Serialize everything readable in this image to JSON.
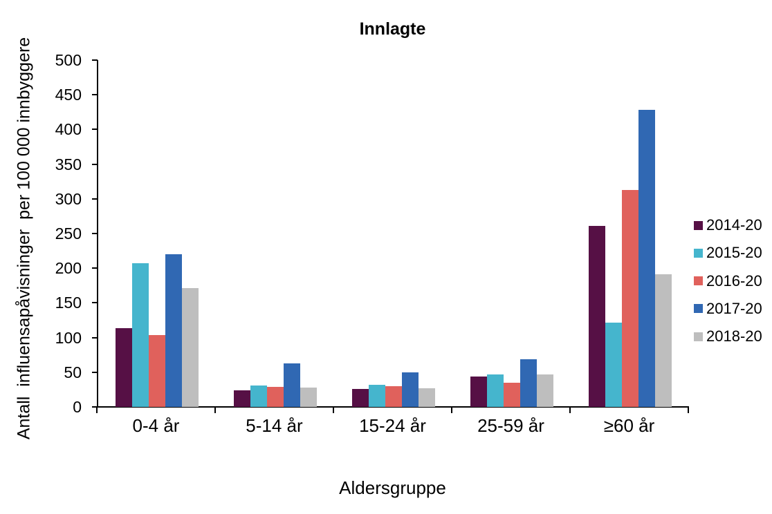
{
  "title": "Innlagte",
  "y_axis": {
    "label": "Antall  influensapåvisninger  per 100 000 innbyggere"
  },
  "x_axis": {
    "label": "Aldersgruppe"
  },
  "legend": {
    "position": "right",
    "note": "labels truncated at image edge",
    "items": [
      {
        "label": "2014-20",
        "color": "#561045"
      },
      {
        "label": "2015-20",
        "color": "#45B5CD"
      },
      {
        "label": "2016-20",
        "color": "#E0615C"
      },
      {
        "label": "2017-20",
        "color": "#3068B3"
      },
      {
        "label": "2018-20",
        "color": "#BEBEBE"
      }
    ]
  },
  "chart_data": {
    "type": "bar",
    "title": "Innlagte",
    "xlabel": "Aldersgruppe",
    "ylabel": "Antall  influensapåvisninger  per 100 000 innbyggere",
    "ylim": [
      0,
      500
    ],
    "yticks": [
      0,
      50,
      100,
      150,
      200,
      250,
      300,
      350,
      400,
      450,
      500
    ],
    "grid": false,
    "legend_position": "right",
    "categories": [
      "0-4 år",
      "5-14 år",
      "15-24 år",
      "25-59 år",
      "≥60 år"
    ],
    "series": [
      {
        "name": "2014-20",
        "color": "#561045",
        "pattern": "solid",
        "values": [
          114,
          24,
          26,
          44,
          261
        ]
      },
      {
        "name": "2015-20",
        "color": "#45B5CD",
        "pattern": "solid",
        "values": [
          207,
          31,
          32,
          47,
          122
        ]
      },
      {
        "name": "2016-20",
        "color": "#E0615C",
        "pattern": "solid",
        "values": [
          104,
          29,
          30,
          35,
          313
        ]
      },
      {
        "name": "2017-20",
        "color": "#3068B3",
        "pattern": "solid",
        "values": [
          220,
          63,
          50,
          69,
          428
        ]
      },
      {
        "name": "2018-20",
        "color": "#BEBEBE",
        "pattern": "dotted",
        "values": [
          171,
          28,
          27,
          47,
          191
        ]
      }
    ]
  }
}
